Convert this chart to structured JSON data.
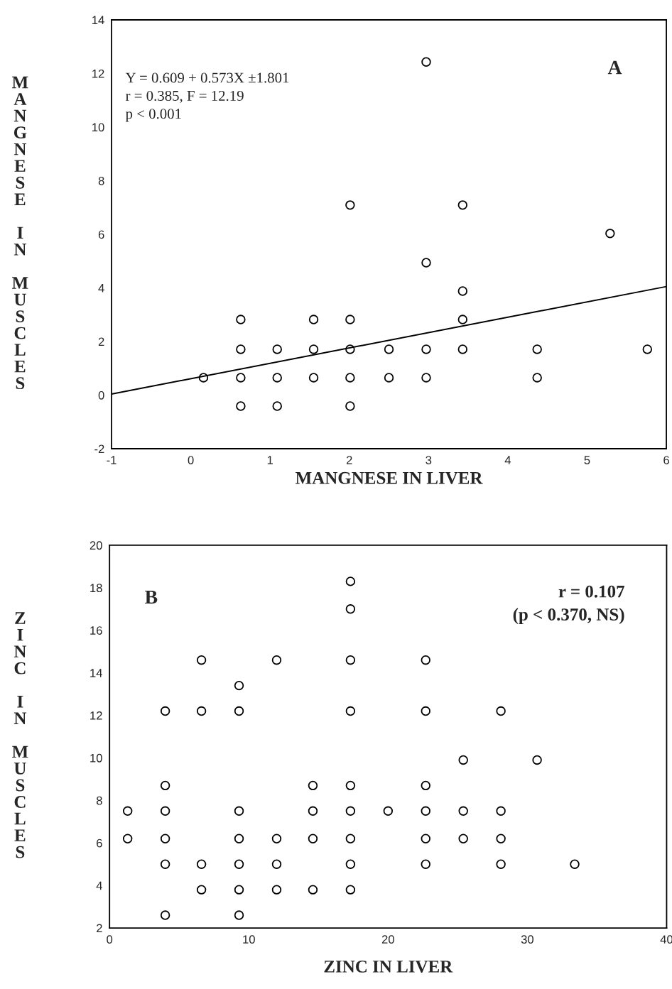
{
  "chart_data": [
    {
      "type": "scatter",
      "xlabel": "MANGNESE IN LIVER",
      "ylabel": "MANGNESE IN MUSCLES",
      "annotations": [
        "Y = 0.609 + 0.573X ±1.801",
        "r = 0.385, F = 12.19",
        "p < 0.001",
        "A"
      ],
      "xlim": [
        -1,
        6
      ],
      "xticks": [
        -1,
        0,
        1,
        2,
        3,
        4,
        5,
        6
      ],
      "ylim": [
        -2,
        14
      ],
      "yticks": [
        -2,
        0,
        2,
        4,
        6,
        8,
        10,
        12,
        14
      ],
      "grid": false,
      "legend": false,
      "series": [
        {
          "marker": "circle",
          "color": "#000000",
          "x": [
            0.16,
            0.63,
            0.63,
            0.63,
            0.63,
            1.09,
            1.09,
            1.09,
            1.55,
            1.55,
            1.55,
            2.01,
            2.01,
            2.01,
            2.01,
            2.01,
            2.5,
            2.5,
            2.97,
            2.97,
            2.97,
            2.97,
            3.43,
            3.43,
            3.43,
            3.43,
            4.37,
            4.37,
            5.29,
            5.76
          ],
          "values": [
            0.65,
            2.82,
            1.71,
            0.65,
            -0.41,
            1.71,
            0.65,
            -0.41,
            2.82,
            1.71,
            0.65,
            7.09,
            2.82,
            1.71,
            0.65,
            -0.41,
            1.71,
            0.65,
            12.43,
            4.94,
            1.71,
            0.65,
            7.09,
            3.88,
            2.82,
            1.71,
            1.71,
            0.65,
            6.03,
            1.71
          ]
        },
        {
          "type": "line",
          "marker": "none",
          "color": "#000000",
          "line_style": "solid",
          "x": [
            -1,
            6
          ],
          "values": [
            0.04,
            4.05
          ]
        }
      ]
    },
    {
      "type": "scatter",
      "xlabel": "ZINC IN LIVER",
      "ylabel": "ZINC IN MUSCLES",
      "annotations": [
        "B",
        "r = 0.107",
        "(p < 0.370, NS)"
      ],
      "xlim": [
        0,
        40
      ],
      "xticks": [
        0,
        10,
        20,
        30,
        40
      ],
      "ylim": [
        2,
        20
      ],
      "yticks": [
        2,
        4,
        6,
        8,
        10,
        12,
        14,
        16,
        18,
        20
      ],
      "grid": false,
      "legend": false,
      "marker": "circle",
      "series": [
        {
          "color": "#000000",
          "x": [
            17.3,
            17.3,
            6.6,
            12.0,
            17.3,
            22.7,
            9.3,
            4.0,
            6.6,
            9.3,
            17.3,
            22.7,
            28.1,
            25.4,
            30.7,
            4.0,
            14.6,
            17.3,
            22.7,
            1.3,
            4.0,
            9.3,
            14.6,
            17.3,
            20.0,
            22.7,
            25.4,
            28.1,
            1.3,
            4.0,
            9.3,
            12.0,
            14.6,
            17.3,
            22.7,
            25.4,
            28.1,
            4.0,
            6.6,
            9.3,
            12.0,
            17.3,
            22.7,
            28.1,
            33.4,
            6.6,
            9.3,
            12.0,
            14.6,
            17.3,
            4.0,
            9.3
          ],
          "values": [
            18.3,
            17.0,
            14.6,
            14.6,
            14.6,
            14.6,
            13.4,
            12.2,
            12.2,
            12.2,
            12.2,
            12.2,
            12.2,
            9.9,
            9.9,
            8.7,
            8.7,
            8.7,
            8.7,
            7.5,
            7.5,
            7.5,
            7.5,
            7.5,
            7.5,
            7.5,
            7.5,
            7.5,
            6.2,
            6.2,
            6.2,
            6.2,
            6.2,
            6.2,
            6.2,
            6.2,
            6.2,
            5.0,
            5.0,
            5.0,
            5.0,
            5.0,
            5.0,
            5.0,
            5.0,
            3.8,
            3.8,
            3.8,
            3.8,
            3.8,
            2.6,
            2.6
          ]
        }
      ]
    }
  ]
}
